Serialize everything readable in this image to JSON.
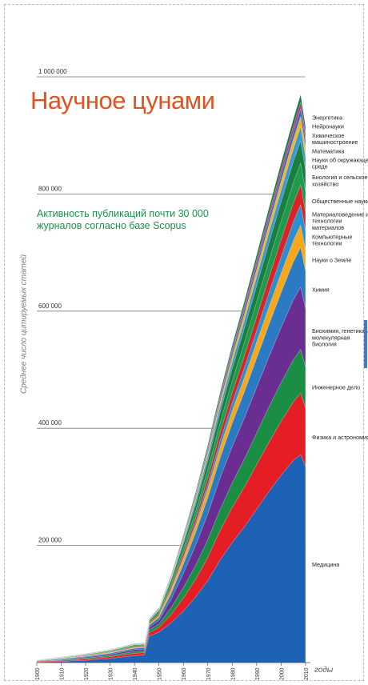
{
  "chart_data": {
    "type": "area",
    "title": "Научное цунами",
    "subtitle": "Активность публикаций почти 30 000 журналов согласно базе Scopus",
    "ylabel": "Среднее число цитируемых статей",
    "xlabel": "годы",
    "ylim": [
      0,
      1000000
    ],
    "xlim": [
      1900,
      2012
    ],
    "y_ticks": [
      200000,
      400000,
      600000,
      800000,
      1000000
    ],
    "y_tick_labels": [
      "200 000",
      "400 000",
      "600 000",
      "800 000",
      "1 000 000"
    ],
    "x_ticks": [
      1900,
      1910,
      1920,
      1930,
      1940,
      1950,
      1960,
      1970,
      1980,
      1990,
      2000,
      2010
    ],
    "grid": true,
    "legend_placement": "right",
    "x": [
      1900,
      1910,
      1920,
      1930,
      1940,
      1944,
      1946,
      1950,
      1955,
      1960,
      1965,
      1970,
      1975,
      1980,
      1985,
      1990,
      1995,
      2000,
      2005,
      2008,
      2010
    ],
    "series": [
      {
        "name": "Медицина",
        "color": "#1d62b5",
        "values": [
          1000,
          2000,
          4000,
          7000,
          12000,
          13000,
          45000,
          52000,
          68000,
          88000,
          112000,
          140000,
          175000,
          205000,
          232000,
          262000,
          292000,
          320000,
          345000,
          355000,
          335000
        ]
      },
      {
        "name": "Физика и астрономия",
        "color": "#e51e25",
        "values": [
          1000,
          1500,
          2000,
          3000,
          4000,
          4000,
          6000,
          8000,
          14000,
          22000,
          30000,
          40000,
          50000,
          60000,
          68000,
          76000,
          84000,
          92000,
          100000,
          105000,
          100000
        ]
      },
      {
        "name": "Инженерное дело",
        "color": "#1a8f43",
        "values": [
          500,
          1000,
          1500,
          2000,
          3000,
          3000,
          5000,
          6000,
          12000,
          18000,
          24000,
          30000,
          36000,
          42000,
          48000,
          54000,
          60000,
          66000,
          72000,
          75000,
          70000
        ]
      },
      {
        "name": "Биохимия, генетика и молекулярная биология",
        "color": "#6a2e92",
        "values": [
          500,
          1000,
          1500,
          2000,
          3000,
          3000,
          4000,
          6000,
          14000,
          24000,
          34000,
          44000,
          54000,
          62000,
          70000,
          78000,
          86000,
          94000,
          102000,
          106000,
          100000
        ]
      },
      {
        "name": "Химия",
        "color": "#2a7bc4",
        "values": [
          500,
          1000,
          1500,
          2000,
          2500,
          2500,
          4000,
          5000,
          10000,
          16000,
          22000,
          28000,
          34000,
          40000,
          45000,
          50000,
          55000,
          60000,
          65000,
          68000,
          64000
        ]
      },
      {
        "name": "Науки о Земле",
        "color": "#f6a71b",
        "values": [
          300,
          600,
          900,
          1200,
          1500,
          1500,
          2000,
          3000,
          6000,
          9000,
          12000,
          15000,
          18000,
          21000,
          24000,
          27000,
          30000,
          33000,
          36000,
          38000,
          36000
        ]
      },
      {
        "name": "Компьютерные технологии",
        "color": "#2c8fd0",
        "values": [
          0,
          0,
          0,
          0,
          0,
          0,
          0,
          500,
          1500,
          3000,
          5000,
          8000,
          11000,
          14000,
          17000,
          20000,
          24000,
          28000,
          32000,
          35000,
          33000
        ]
      },
      {
        "name": "Материаловедение и технологии материалов",
        "color": "#d8232a",
        "values": [
          200,
          400,
          600,
          800,
          1000,
          1000,
          1500,
          2000,
          4000,
          6000,
          8000,
          11000,
          14000,
          17000,
          20000,
          23000,
          26000,
          29000,
          32000,
          34000,
          32000
        ]
      },
      {
        "name": "Общественные науки",
        "color": "#1e9a4c",
        "values": [
          300,
          500,
          800,
          1000,
          1500,
          1500,
          2000,
          3000,
          5000,
          8000,
          11000,
          14000,
          17000,
          20000,
          23000,
          26000,
          29000,
          32000,
          35000,
          37000,
          35000
        ]
      },
      {
        "name": "Биология и сельское хозяйство",
        "color": "#1b7d3e",
        "values": [
          300,
          600,
          900,
          1200,
          1500,
          1500,
          2000,
          3000,
          6000,
          9000,
          12000,
          15000,
          18000,
          21000,
          24000,
          27000,
          30000,
          33000,
          36000,
          38000,
          36000
        ]
      },
      {
        "name": "Науки об окружающей среде",
        "color": "#3a98d6",
        "values": [
          100,
          200,
          300,
          400,
          500,
          500,
          800,
          1000,
          2000,
          4000,
          6000,
          8000,
          10000,
          12000,
          14000,
          16000,
          18000,
          20000,
          22000,
          24000,
          23000
        ]
      },
      {
        "name": "Математика",
        "color": "#f5b31f",
        "values": [
          200,
          300,
          400,
          500,
          700,
          700,
          900,
          1000,
          2000,
          3000,
          4500,
          6000,
          7500,
          9000,
          10500,
          12000,
          13500,
          15000,
          16500,
          17500,
          16500
        ]
      },
      {
        "name": "Химическое машиностроение",
        "color": "#2a6cb8",
        "values": [
          100,
          200,
          300,
          400,
          500,
          500,
          700,
          1000,
          2000,
          3000,
          4000,
          5000,
          6000,
          7000,
          8000,
          9000,
          10000,
          11000,
          12000,
          13000,
          12000
        ]
      },
      {
        "name": "Нейронауки",
        "color": "#c62a8e",
        "values": [
          0,
          0,
          100,
          200,
          300,
          300,
          400,
          500,
          1000,
          1500,
          2000,
          3000,
          4000,
          5000,
          6000,
          7000,
          8000,
          9000,
          10000,
          11000,
          10500
        ]
      },
      {
        "name": "Энергетика",
        "color": "#147d3a",
        "values": [
          100,
          200,
          300,
          400,
          500,
          500,
          700,
          1000,
          2000,
          3000,
          4000,
          5000,
          6000,
          7000,
          8000,
          9000,
          10000,
          11000,
          12000,
          13000,
          12000
        ]
      }
    ]
  }
}
